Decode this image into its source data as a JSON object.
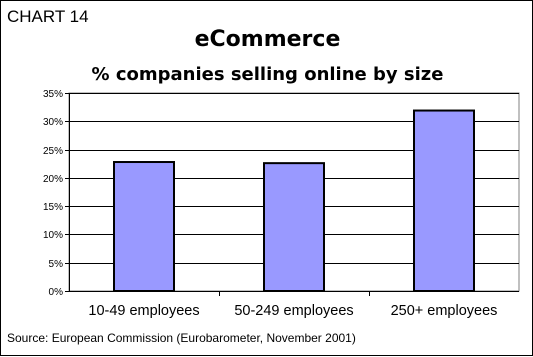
{
  "chart_number": "CHART 14",
  "source": "Source: European Commission (Eurobarometer, November 2001)",
  "colors": {
    "bar_fill": "#9999ff",
    "bar_stroke": "#000000",
    "plot_background": "#ffffff",
    "gridline": "#000000"
  },
  "chart_data": {
    "type": "bar",
    "title": "eCommerce",
    "subtitle": "% companies selling online by size",
    "categories": [
      "10-49 employees",
      "50-249 employees",
      "250+ employees"
    ],
    "values": [
      22.8,
      22.6,
      31.9
    ],
    "xlabel": "",
    "ylabel": "",
    "ylim": [
      0,
      35
    ],
    "yticks": [
      "0%",
      "5%",
      "10%",
      "15%",
      "20%",
      "25%",
      "30%",
      "35%"
    ],
    "ytick_values": [
      0,
      5,
      10,
      15,
      20,
      25,
      30,
      35
    ],
    "grid": true,
    "legend": "none"
  }
}
